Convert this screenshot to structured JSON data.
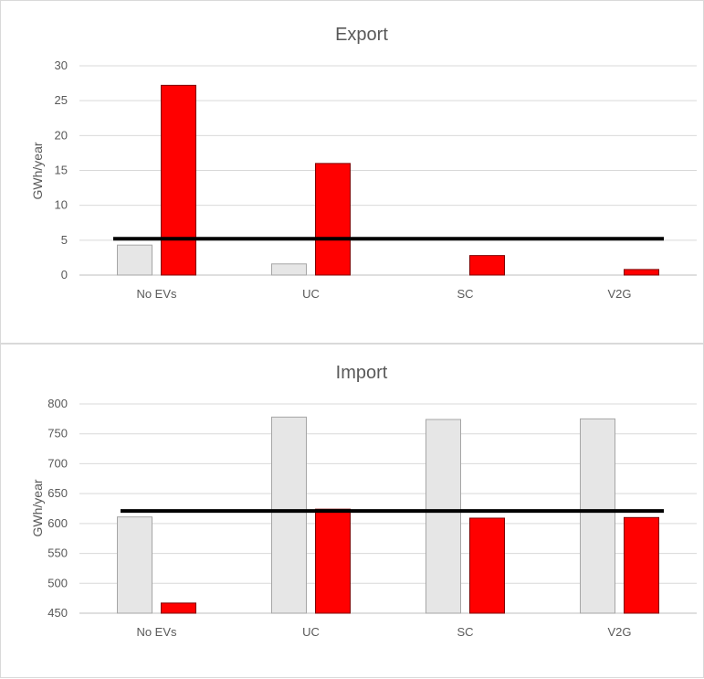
{
  "chart_data": [
    {
      "type": "bar",
      "title": "Export",
      "xlabel": "",
      "ylabel": "GWh/year",
      "categories": [
        "No EVs",
        "UC",
        "SC",
        "V2G"
      ],
      "ylim": [
        0,
        30
      ],
      "yticks": [
        0,
        5,
        10,
        15,
        20,
        25,
        30
      ],
      "grid": true,
      "legend": "none",
      "series": [
        {
          "values": [
            4.3,
            1.6,
            0,
            0
          ],
          "color": "#e6e6e6",
          "edge": "#a6a6a6"
        },
        {
          "values": [
            27.2,
            16.0,
            2.8,
            0.8
          ],
          "color": "#ff0000",
          "edge": "#7f0000"
        }
      ],
      "reference_line": {
        "value": 5.2,
        "color": "#000000"
      }
    },
    {
      "type": "bar",
      "title": "Import",
      "xlabel": "",
      "ylabel": "GWh/year",
      "categories": [
        "No EVs",
        "UC",
        "SC",
        "V2G"
      ],
      "ylim": [
        450,
        800
      ],
      "yticks": [
        450,
        500,
        550,
        600,
        650,
        700,
        750,
        800
      ],
      "grid": true,
      "legend": "none",
      "series": [
        {
          "values": [
            611,
            778,
            774,
            775
          ],
          "color": "#e6e6e6",
          "edge": "#a6a6a6"
        },
        {
          "values": [
            467,
            624,
            609,
            610
          ],
          "color": "#ff0000",
          "edge": "#7f0000"
        }
      ],
      "reference_line": {
        "value": 621,
        "color": "#000000"
      }
    }
  ]
}
